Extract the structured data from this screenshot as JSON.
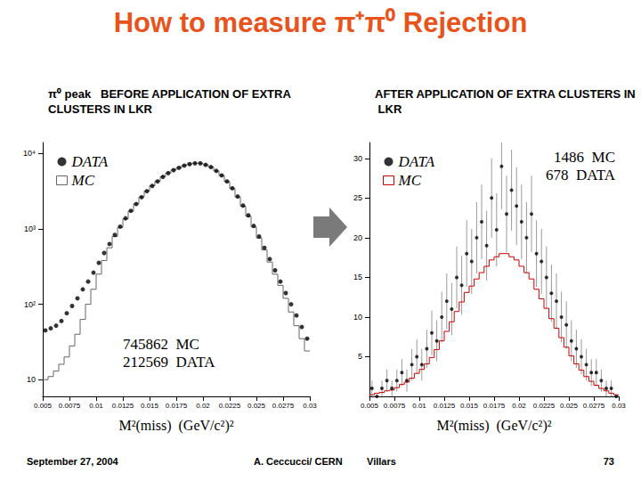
{
  "title": "How to measure π⁺π⁰ Rejection",
  "chart_data": [
    {
      "type": "histogram",
      "title": "π⁰ peak   BEFORE APPLICATION OF EXTRA CLUSTERS IN LKR",
      "x_label": "M²(miss)  (GeV/c²)²",
      "bins": [
        0.005,
        0.0055,
        0.006,
        0.0065,
        0.007,
        0.0075,
        0.008,
        0.0085,
        0.009,
        0.0095,
        0.01,
        0.0105,
        0.011,
        0.0115,
        0.012,
        0.0125,
        0.013,
        0.0135,
        0.014,
        0.0145,
        0.015,
        0.0155,
        0.016,
        0.0165,
        0.017,
        0.0175,
        0.018,
        0.0185,
        0.019,
        0.0195,
        0.02,
        0.0205,
        0.021,
        0.0215,
        0.022,
        0.0225,
        0.023,
        0.0235,
        0.024,
        0.0245,
        0.025,
        0.0255,
        0.026,
        0.0265,
        0.027,
        0.0275,
        0.028,
        0.0285,
        0.029,
        0.0295,
        0.03
      ],
      "series": [
        {
          "name": "DATA",
          "type": "scatter",
          "marker": "circle",
          "color": "#000000",
          "values": [
            45,
            48,
            52,
            60,
            76,
            95,
            120,
            158,
            200,
            263,
            355,
            479,
            631,
            832,
            1072,
            1380,
            1738,
            2138,
            2630,
            3162,
            3715,
            4266,
            4898,
            5495,
            6026,
            6457,
            6918,
            7244,
            7413,
            7413,
            7079,
            6607,
            5888,
            5129,
            4266,
            3467,
            2692,
            2042,
            1514,
            1096,
            794,
            562,
            398,
            282,
            200,
            141,
            100,
            71,
            50,
            35
          ]
        },
        {
          "name": "MC",
          "type": "step",
          "color": "#666666",
          "values": [
            10,
            11,
            13,
            16,
            20,
            28,
            40,
            63,
            100,
            158,
            251,
            380,
            562,
            794,
            1047,
            1360,
            1720,
            2150,
            2650,
            3190,
            3740,
            4300,
            4930,
            5530,
            6060,
            6500,
            6950,
            7280,
            7440,
            7430,
            7090,
            6610,
            5880,
            5110,
            4240,
            3430,
            2650,
            2000,
            1470,
            1060,
            759,
            525,
            363,
            251,
            178,
            120,
            79,
            52,
            35,
            24
          ]
        }
      ],
      "xlim": [
        0.005,
        0.03
      ],
      "xticks": [
        0.005,
        0.0075,
        0.01,
        0.0125,
        0.015,
        0.0175,
        0.02,
        0.0225,
        0.025,
        0.0275,
        0.03
      ],
      "ylim": [
        6,
        14000
      ],
      "yticks": [
        10,
        {
          "value": 100,
          "label": "10²"
        },
        {
          "value": 1000,
          "label": "10³"
        },
        {
          "value": 10000,
          "label": "10⁴"
        }
      ],
      "log": "y",
      "grid": false,
      "legend": "top-left",
      "annotations": [
        "745862  MC",
        "212569  DATA"
      ]
    },
    {
      "type": "histogram",
      "title": "AFTER APPLICATION OF EXTRA CLUSTERS IN LKR",
      "x_label": "M²(miss)  (GeV/c²)²",
      "bins": [
        0.005,
        0.0055,
        0.006,
        0.0065,
        0.007,
        0.0075,
        0.008,
        0.0085,
        0.009,
        0.0095,
        0.01,
        0.0105,
        0.011,
        0.0115,
        0.012,
        0.0125,
        0.013,
        0.0135,
        0.014,
        0.0145,
        0.015,
        0.0155,
        0.016,
        0.0165,
        0.017,
        0.0175,
        0.018,
        0.0185,
        0.019,
        0.0195,
        0.02,
        0.0205,
        0.021,
        0.0215,
        0.022,
        0.0225,
        0.023,
        0.0235,
        0.024,
        0.0245,
        0.025,
        0.0255,
        0.026,
        0.0265,
        0.027,
        0.0275,
        0.028,
        0.0285,
        0.029,
        0.0295,
        0.03
      ],
      "series": [
        {
          "name": "DATA",
          "type": "scatter",
          "marker": "circle",
          "color": "#000000",
          "values": [
            1,
            0,
            1,
            2,
            1,
            2,
            3,
            2,
            4,
            5,
            4,
            6,
            8,
            7,
            10,
            12,
            11,
            15,
            14,
            18,
            17,
            20,
            22,
            19,
            25,
            21,
            29,
            23,
            26,
            24,
            22,
            20,
            23,
            18,
            17,
            15,
            13,
            12,
            10,
            9,
            7,
            6,
            5,
            4,
            3,
            3,
            2,
            1,
            1,
            0
          ],
          "errors": [
            1,
            0,
            1,
            1.4,
            1,
            1.4,
            1.7,
            1.4,
            2,
            2.2,
            2,
            2.4,
            2.8,
            2.6,
            3.2,
            3.5,
            3.3,
            3.9,
            3.7,
            4.2,
            4.1,
            4.5,
            4.7,
            4.4,
            5,
            4.6,
            5.4,
            4.8,
            5.1,
            4.9,
            4.7,
            4.5,
            4.8,
            4.2,
            4.1,
            3.9,
            3.6,
            3.5,
            3.2,
            3,
            2.6,
            2.4,
            2.2,
            2,
            1.7,
            1.7,
            1.4,
            1,
            1,
            0
          ]
        },
        {
          "name": "MC",
          "type": "step",
          "color": "#cc0000",
          "values": [
            0.2,
            0.4,
            0.5,
            0.7,
            0.8,
            1.1,
            1.5,
            1.8,
            2.3,
            2.9,
            3.4,
            4.1,
            4.9,
            5.9,
            7,
            8.2,
            9.4,
            10.7,
            11.9,
            13.1,
            13.9,
            14.8,
            15.6,
            16.4,
            17.2,
            17.6,
            18,
            18,
            17.6,
            17.2,
            16.4,
            15.6,
            14.8,
            13.5,
            12.3,
            11.1,
            9.8,
            8.6,
            7.4,
            6.2,
            5.1,
            4.1,
            3.3,
            2.5,
            1.9,
            1.4,
            1,
            0.7,
            0.4,
            0.2
          ]
        }
      ],
      "xlim": [
        0.005,
        0.03
      ],
      "xticks": [
        0.005,
        0.0075,
        0.01,
        0.0125,
        0.015,
        0.0175,
        0.02,
        0.0225,
        0.025,
        0.0275,
        0.03
      ],
      "ylim": [
        0,
        32
      ],
      "yticks": [
        5,
        10,
        15,
        20,
        25,
        30
      ],
      "grid": false,
      "legend": "top-left",
      "annotations": [
        "1486  MC",
        "678  DATA"
      ]
    }
  ],
  "footer": {
    "date": "September 27, 2004",
    "author": "A. Ceccucci/ CERN",
    "place": "Villars",
    "page": 73
  }
}
